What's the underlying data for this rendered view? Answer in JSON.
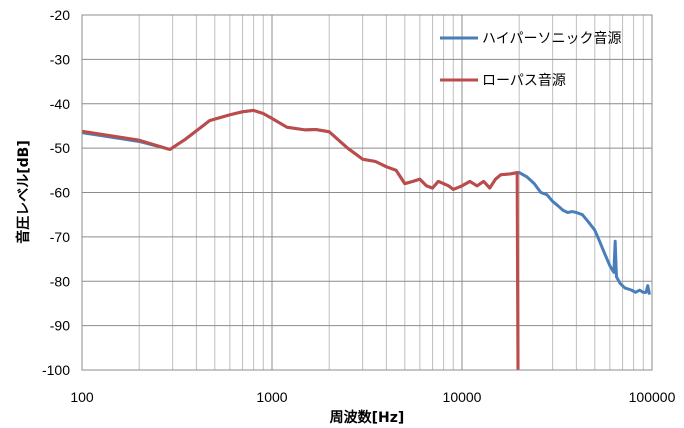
{
  "chart_data": {
    "type": "line",
    "title": "",
    "xlabel": "周波数[Hz]",
    "ylabel": "音圧レベル[dB]",
    "x_scale": "log",
    "xlim": [
      100,
      100000
    ],
    "ylim": [
      -100,
      -20
    ],
    "x_ticks": [
      100,
      1000,
      10000,
      100000
    ],
    "x_tick_labels": [
      "100",
      "1000",
      "10000",
      "100000"
    ],
    "y_ticks": [
      -20,
      -30,
      -40,
      -50,
      -60,
      -70,
      -80,
      -90,
      -100
    ],
    "y_tick_labels": [
      "-20",
      "-30",
      "-40",
      "-50",
      "-60",
      "-70",
      "-80",
      "-90",
      "-100"
    ],
    "grid": "major and minor vertical, major horizontal",
    "legend_position": "top-right",
    "series": [
      {
        "name": "ハイパーソニック音源",
        "color": "#4a7ebb",
        "points": [
          [
            100,
            -46.5
          ],
          [
            200,
            -48.5
          ],
          [
            290,
            -50.3
          ],
          [
            350,
            -48
          ],
          [
            470,
            -43.8
          ],
          [
            600,
            -42.5
          ],
          [
            700,
            -41.8
          ],
          [
            800,
            -41.5
          ],
          [
            900,
            -42.2
          ],
          [
            1000,
            -43.3
          ],
          [
            1200,
            -45.3
          ],
          [
            1500,
            -45.9
          ],
          [
            1700,
            -45.8
          ],
          [
            2000,
            -46.3
          ],
          [
            2500,
            -50
          ],
          [
            3000,
            -52.5
          ],
          [
            3500,
            -53
          ],
          [
            4000,
            -54.2
          ],
          [
            4500,
            -55
          ],
          [
            5000,
            -58
          ],
          [
            5500,
            -57.5
          ],
          [
            6000,
            -57
          ],
          [
            6500,
            -58.5
          ],
          [
            7000,
            -59
          ],
          [
            7500,
            -57.5
          ],
          [
            8000,
            -58
          ],
          [
            8500,
            -58.5
          ],
          [
            9000,
            -59.3
          ],
          [
            10000,
            -58.5
          ],
          [
            11000,
            -57.5
          ],
          [
            12000,
            -58.5
          ],
          [
            13000,
            -57.5
          ],
          [
            14000,
            -59
          ],
          [
            15000,
            -57
          ],
          [
            16000,
            -56
          ],
          [
            18000,
            -55.8
          ],
          [
            20000,
            -55.5
          ],
          [
            22000,
            -56.5
          ],
          [
            24000,
            -58
          ],
          [
            26000,
            -60
          ],
          [
            28000,
            -60.5
          ],
          [
            30000,
            -62
          ],
          [
            32000,
            -63
          ],
          [
            34000,
            -64
          ],
          [
            36000,
            -64.5
          ],
          [
            38000,
            -64.3
          ],
          [
            40000,
            -64.5
          ],
          [
            43000,
            -65
          ],
          [
            46000,
            -66.5
          ],
          [
            50000,
            -68.5
          ],
          [
            53000,
            -71
          ],
          [
            56000,
            -73.5
          ],
          [
            60000,
            -76.5
          ],
          [
            63000,
            -78
          ],
          [
            64000,
            -71
          ],
          [
            65000,
            -79
          ],
          [
            68000,
            -80.5
          ],
          [
            72000,
            -81.5
          ],
          [
            78000,
            -82
          ],
          [
            82000,
            -82.5
          ],
          [
            86000,
            -82
          ],
          [
            90000,
            -82.5
          ],
          [
            93000,
            -82.5
          ],
          [
            95000,
            -81
          ],
          [
            97000,
            -83
          ]
        ]
      },
      {
        "name": "ローパス音源",
        "color": "#be4b48",
        "points": [
          [
            100,
            -46.2
          ],
          [
            200,
            -48.2
          ],
          [
            290,
            -50.3
          ],
          [
            350,
            -48
          ],
          [
            470,
            -43.8
          ],
          [
            600,
            -42.5
          ],
          [
            700,
            -41.8
          ],
          [
            800,
            -41.5
          ],
          [
            900,
            -42.2
          ],
          [
            1000,
            -43.3
          ],
          [
            1200,
            -45.3
          ],
          [
            1500,
            -45.9
          ],
          [
            1700,
            -45.8
          ],
          [
            2000,
            -46.3
          ],
          [
            2500,
            -50
          ],
          [
            3000,
            -52.5
          ],
          [
            3500,
            -53
          ],
          [
            4000,
            -54.2
          ],
          [
            4500,
            -55
          ],
          [
            5000,
            -58
          ],
          [
            5500,
            -57.5
          ],
          [
            6000,
            -57
          ],
          [
            6500,
            -58.5
          ],
          [
            7000,
            -59
          ],
          [
            7500,
            -57.5
          ],
          [
            8000,
            -58
          ],
          [
            8500,
            -58.5
          ],
          [
            9000,
            -59.3
          ],
          [
            10000,
            -58.5
          ],
          [
            11000,
            -57.5
          ],
          [
            12000,
            -58.5
          ],
          [
            13000,
            -57.5
          ],
          [
            14000,
            -59
          ],
          [
            15000,
            -57
          ],
          [
            16000,
            -56
          ],
          [
            18000,
            -55.8
          ],
          [
            19500,
            -55.5
          ],
          [
            19700,
            -100
          ]
        ]
      }
    ]
  }
}
